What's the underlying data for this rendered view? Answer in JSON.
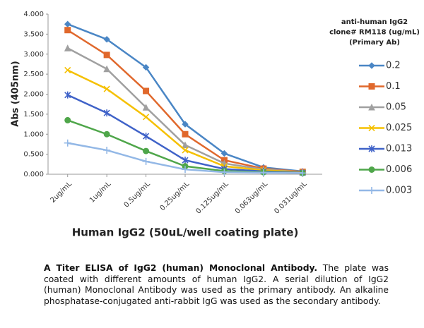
{
  "chart_data": {
    "type": "line",
    "x_label": "Human IgG2 (50uL/well coating plate)",
    "y_label": "Abs (405nm)",
    "legend_title": [
      "anti-human IgG2",
      "clone# RM118 (ug/mL)",
      "(Primary Ab)"
    ],
    "legend_position": "right",
    "grid": false,
    "categories": [
      "2ug/mL",
      "1ug/mL",
      "0.5ug/mL",
      "0.25ug/mL",
      "0.125ug/mL",
      "0.063ug/mL",
      "0.031ug/mL"
    ],
    "ylim": [
      0,
      4
    ],
    "yticks": [
      {
        "value": 0,
        "label": "0.000"
      },
      {
        "value": 0.5,
        "label": "0.500"
      },
      {
        "value": 1,
        "label": "1.000"
      },
      {
        "value": 1.5,
        "label": "1.500"
      },
      {
        "value": 2,
        "label": "2.000"
      },
      {
        "value": 2.5,
        "label": "2.500"
      },
      {
        "value": 3,
        "label": "3.000"
      },
      {
        "value": 3.5,
        "label": "3.500"
      },
      {
        "value": 4,
        "label": "4.000"
      }
    ],
    "series": [
      {
        "name": "0.2",
        "color": "#4a86c5",
        "marker": "diamond",
        "values": [
          3.75,
          3.37,
          2.67,
          1.25,
          0.52,
          0.17,
          0.07
        ]
      },
      {
        "name": "0.1",
        "color": "#e0682c",
        "marker": "square",
        "values": [
          3.6,
          2.98,
          2.08,
          1.0,
          0.35,
          0.14,
          0.06
        ]
      },
      {
        "name": "0.05",
        "color": "#a0a0a0",
        "marker": "triangle",
        "values": [
          3.15,
          2.63,
          1.67,
          0.73,
          0.27,
          0.12,
          0.05
        ]
      },
      {
        "name": "0.025",
        "color": "#f5c000",
        "marker": "x",
        "values": [
          2.6,
          2.13,
          1.43,
          0.6,
          0.2,
          0.1,
          0.05
        ]
      },
      {
        "name": "0.013",
        "color": "#3f62c8",
        "marker": "star",
        "values": [
          1.98,
          1.53,
          0.95,
          0.35,
          0.13,
          0.07,
          0.04
        ]
      },
      {
        "name": "0.006",
        "color": "#4fa64a",
        "marker": "circle",
        "values": [
          1.35,
          1.0,
          0.58,
          0.2,
          0.08,
          0.05,
          0.03
        ]
      },
      {
        "name": "0.003",
        "color": "#93b8e6",
        "marker": "plus",
        "values": [
          0.78,
          0.6,
          0.32,
          0.12,
          0.05,
          0.04,
          0.03
        ]
      }
    ]
  },
  "caption": {
    "title": "A Titer ELISA of IgG2 (human) Monoclonal Antibody.",
    "text": "The plate was coated with different amounts of human IgG2. A serial dilution of IgG2 (human) Monoclonal Antibody was used as the primary antibody. An alkaline phosphatase-conjugated anti-rabbit IgG was used as the secondary antibody."
  }
}
